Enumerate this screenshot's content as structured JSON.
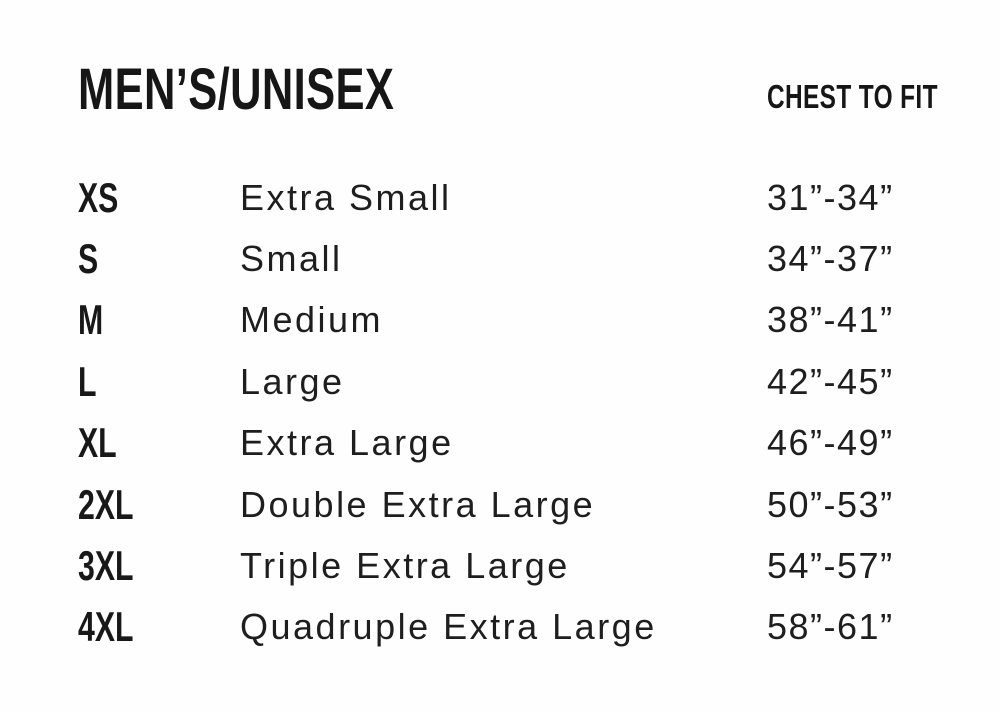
{
  "colors": {
    "background": "#fefefe",
    "text": "#1c1c1c"
  },
  "chart_data": {
    "type": "table",
    "title": "MEN’S/UNISEX",
    "columns": [
      {
        "label": "",
        "field": "abbr"
      },
      {
        "label": "",
        "field": "name"
      },
      {
        "label": "CHEST TO FIT",
        "field": "range"
      }
    ],
    "rows": [
      {
        "abbr": "XS",
        "name": "Extra Small",
        "range": "31”-34”"
      },
      {
        "abbr": "S",
        "name": "Small",
        "range": "34”-37”"
      },
      {
        "abbr": "M",
        "name": "Medium",
        "range": "38”-41”"
      },
      {
        "abbr": "L",
        "name": "Large",
        "range": "42”-45”"
      },
      {
        "abbr": "XL",
        "name": "Extra Large",
        "range": "46”-49”"
      },
      {
        "abbr": "2XL",
        "name": "Double Extra Large",
        "range": "50”-53”"
      },
      {
        "abbr": "3XL",
        "name": "Triple Extra Large",
        "range": "54”-57”"
      },
      {
        "abbr": "4XL",
        "name": "Quadruple Extra Large",
        "range": "58”-61”"
      }
    ]
  }
}
